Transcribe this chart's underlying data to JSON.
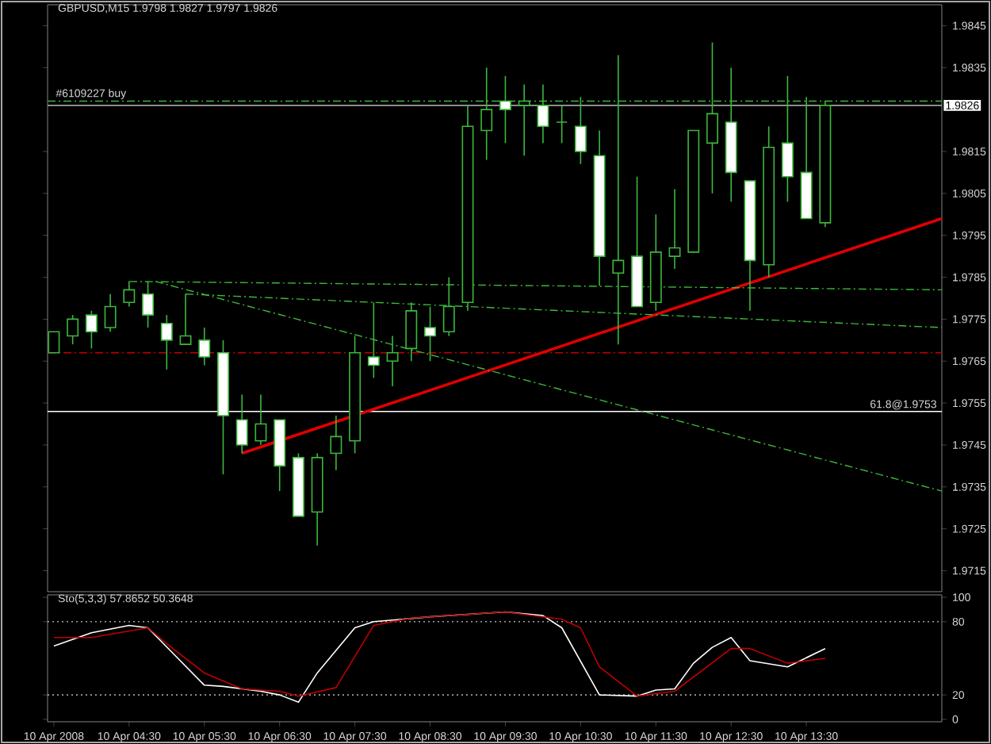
{
  "chart_data": [
    {
      "type": "candlestick",
      "title": "GBPUSD,M15 1.9798 1.9827 1.9797 1.9826",
      "color": "#3cb83c",
      "x": [
        "2008-04-10T03:30",
        "2008-04-10T03:45",
        "2008-04-10T04:00",
        "2008-04-10T04:15",
        "2008-04-10T04:30",
        "2008-04-10T04:45",
        "2008-04-10T05:00",
        "2008-04-10T05:15",
        "2008-04-10T05:30",
        "2008-04-10T05:45",
        "2008-04-10T06:00",
        "2008-04-10T06:15",
        "2008-04-10T06:30",
        "2008-04-10T06:45",
        "2008-04-10T07:00",
        "2008-04-10T07:15",
        "2008-04-10T07:30",
        "2008-04-10T07:45",
        "2008-04-10T08:00",
        "2008-04-10T08:15",
        "2008-04-10T08:30",
        "2008-04-10T08:45",
        "2008-04-10T09:00",
        "2008-04-10T09:15",
        "2008-04-10T09:30",
        "2008-04-10T09:45",
        "2008-04-10T10:00",
        "2008-04-10T10:15",
        "2008-04-10T10:30",
        "2008-04-10T10:45",
        "2008-04-10T11:00",
        "2008-04-10T11:15",
        "2008-04-10T11:30",
        "2008-04-10T11:45",
        "2008-04-10T12:00",
        "2008-04-10T12:15",
        "2008-04-10T12:30",
        "2008-04-10T12:45",
        "2008-04-10T13:00",
        "2008-04-10T13:15",
        "2008-04-10T13:30",
        "2008-04-10T13:45"
      ],
      "ohlc": [
        [
          1.9767,
          1.9772,
          1.9767,
          1.9772
        ],
        [
          1.9771,
          1.9776,
          1.9769,
          1.9775
        ],
        [
          1.9776,
          1.9777,
          1.9768,
          1.9772
        ],
        [
          1.9773,
          1.9781,
          1.9772,
          1.9778
        ],
        [
          1.9779,
          1.9784,
          1.9778,
          1.9782
        ],
        [
          1.9781,
          1.9784,
          1.9773,
          1.9776
        ],
        [
          1.9774,
          1.9776,
          1.9763,
          1.977
        ],
        [
          1.9769,
          1.9781,
          1.9769,
          1.9771
        ],
        [
          1.977,
          1.9773,
          1.9764,
          1.9766
        ],
        [
          1.9767,
          1.977,
          1.9738,
          1.9752
        ],
        [
          1.9751,
          1.9757,
          1.9743,
          1.9745
        ],
        [
          1.9746,
          1.9757,
          1.9745,
          1.975
        ],
        [
          1.9751,
          1.9751,
          1.9734,
          1.974
        ],
        [
          1.9742,
          1.9743,
          1.9728,
          1.9728
        ],
        [
          1.9729,
          1.9743,
          1.9721,
          1.9742
        ],
        [
          1.9743,
          1.9752,
          1.9739,
          1.9747
        ],
        [
          1.9746,
          1.9771,
          1.9743,
          1.9767
        ],
        [
          1.9766,
          1.9779,
          1.9761,
          1.9764
        ],
        [
          1.9765,
          1.9771,
          1.9759,
          1.9767
        ],
        [
          1.9768,
          1.9779,
          1.9765,
          1.9777
        ],
        [
          1.9773,
          1.9778,
          1.9765,
          1.9771
        ],
        [
          1.9772,
          1.9785,
          1.9771,
          1.9778
        ],
        [
          1.9779,
          1.9826,
          1.9777,
          1.9821
        ],
        [
          1.982,
          1.9835,
          1.9813,
          1.9825
        ],
        [
          1.9827,
          1.9833,
          1.9817,
          1.9825
        ],
        [
          1.9826,
          1.9831,
          1.9814,
          1.9827
        ],
        [
          1.9826,
          1.9831,
          1.9817,
          1.9821
        ],
        [
          1.9822,
          1.9826,
          1.9817,
          1.9822
        ],
        [
          1.9821,
          1.9828,
          1.9812,
          1.9815
        ],
        [
          1.9814,
          1.982,
          1.9783,
          1.979
        ],
        [
          1.9786,
          1.9838,
          1.9769,
          1.9789
        ],
        [
          1.979,
          1.9809,
          1.9778,
          1.9778
        ],
        [
          1.9779,
          1.98,
          1.9777,
          1.9791
        ],
        [
          1.979,
          1.9806,
          1.9787,
          1.9792
        ],
        [
          1.9791,
          1.982,
          1.9791,
          1.982
        ],
        [
          1.9817,
          1.9841,
          1.9805,
          1.9824
        ],
        [
          1.9822,
          1.9835,
          1.9803,
          1.981
        ],
        [
          1.9808,
          1.9808,
          1.9777,
          1.9789
        ],
        [
          1.9788,
          1.9821,
          1.9785,
          1.9816
        ],
        [
          1.9817,
          1.9833,
          1.9803,
          1.9809
        ],
        [
          1.981,
          1.9828,
          1.9799,
          1.9799
        ],
        [
          1.9798,
          1.9827,
          1.9797,
          1.9826
        ]
      ],
      "series": [
        {
          "type": "line",
          "x": [
            "2008-04-10T06:00",
            "2008-04-10T15:18"
          ],
          "values": [
            1.9743,
            1.9799
          ],
          "color": "#e00000",
          "line_style": "solid"
        },
        {
          "type": "line",
          "x": [
            "2008-04-10T04:30",
            "2008-04-10T15:18"
          ],
          "values": [
            1.9784,
            1.9782
          ],
          "color": "#3cb83c",
          "line_style": "dashed"
        },
        {
          "type": "line",
          "x": [
            "2008-04-10T05:15",
            "2008-04-10T15:18"
          ],
          "values": [
            1.9781,
            1.9773
          ],
          "color": "#3cb83c",
          "line_style": "dashed"
        },
        {
          "type": "line",
          "x": [
            "2008-04-10T04:51",
            "2008-04-10T15:18"
          ],
          "values": [
            1.9784,
            1.9734
          ],
          "color": "#3cb83c",
          "line_style": "dashed"
        }
      ],
      "ref_lines": [
        {
          "axis": "y",
          "value": 1.9827,
          "label": "#6109227 buy",
          "color": "#3cb83c",
          "line_style": "dashed"
        },
        {
          "axis": "y",
          "value": 1.9826,
          "label": "1.9826",
          "color": "#a0a0a0",
          "line_style": "solid"
        },
        {
          "axis": "y",
          "value": 1.9767,
          "color": "#c00000",
          "line_style": "dashed"
        },
        {
          "axis": "y",
          "value": 1.9753,
          "label": "61.8@1.9753",
          "color": "#ffffff",
          "line_style": "solid"
        }
      ],
      "xlim": [
        "2008-04-10T03:25",
        "2008-04-10T15:18"
      ],
      "ylim": [
        1.971,
        1.985
      ],
      "yticks": [
        1.9845,
        1.9835,
        1.9815,
        1.9805,
        1.9795,
        1.9785,
        1.9775,
        1.9765,
        1.9755,
        1.9745,
        1.9735,
        1.9725,
        1.9715
      ],
      "tick_labels": "y"
    },
    {
      "type": "line",
      "title": "Sto(5,3,3) 57.8652 50.3648",
      "series": [
        {
          "x": [
            "2008-04-10T03:30",
            "2008-04-10T04:00",
            "2008-04-10T04:30",
            "2008-04-10T04:45",
            "2008-04-10T05:30",
            "2008-04-10T05:45",
            "2008-04-10T06:15",
            "2008-04-10T06:30",
            "2008-04-10T06:45",
            "2008-04-10T07:00",
            "2008-04-10T07:30",
            "2008-04-10T07:45",
            "2008-04-10T08:30",
            "2008-04-10T09:30",
            "2008-04-10T10:00",
            "2008-04-10T10:15",
            "2008-04-10T10:45",
            "2008-04-10T11:15",
            "2008-04-10T11:30",
            "2008-04-10T11:45",
            "2008-04-10T12:00",
            "2008-04-10T12:15",
            "2008-04-10T12:30",
            "2008-04-10T12:45",
            "2008-04-10T13:15",
            "2008-04-10T13:45"
          ],
          "values": [
            60,
            71,
            77,
            75,
            28,
            27,
            23,
            20,
            14,
            38,
            75,
            80,
            84,
            88,
            85,
            75,
            20,
            19,
            24,
            25,
            46,
            59,
            67,
            48,
            43,
            58
          ],
          "color": "#ffffff",
          "line_style": "solid"
        },
        {
          "x": [
            "2008-04-10T03:30",
            "2008-04-10T04:00",
            "2008-04-10T04:45",
            "2008-04-10T05:00",
            "2008-04-10T05:30",
            "2008-04-10T06:00",
            "2008-04-10T06:30",
            "2008-04-10T06:45",
            "2008-04-10T07:15",
            "2008-04-10T07:45",
            "2008-04-10T08:15",
            "2008-04-10T09:30",
            "2008-04-10T10:15",
            "2008-04-10T10:30",
            "2008-04-10T10:45",
            "2008-04-10T11:15",
            "2008-04-10T11:45",
            "2008-04-10T12:30",
            "2008-04-10T12:45",
            "2008-04-10T13:15",
            "2008-04-10T13:45"
          ],
          "values": [
            67,
            67,
            75,
            62,
            38,
            25,
            23,
            19,
            26,
            77,
            83,
            88,
            82,
            75,
            43,
            19,
            23,
            58,
            58,
            46,
            50
          ],
          "color": "#c00000",
          "line_style": "solid"
        }
      ],
      "ref_lines": [
        {
          "axis": "y",
          "value": 80,
          "color": "#a0a0a0",
          "line_style": "dotted"
        },
        {
          "axis": "y",
          "value": 20,
          "color": "#a0a0a0",
          "line_style": "dotted"
        }
      ],
      "xlim": [
        "2008-04-10T03:25",
        "2008-04-10T15:18"
      ],
      "ylim": [
        -2,
        102
      ],
      "xticks": [
        {
          "value": "2008-04-10T03:30",
          "label": "10 Apr 2008"
        },
        {
          "value": "2008-04-10T04:30",
          "label": "10 Apr 04:30"
        },
        {
          "value": "2008-04-10T05:30",
          "label": "10 Apr 05:30"
        },
        {
          "value": "2008-04-10T06:30",
          "label": "10 Apr 06:30"
        },
        {
          "value": "2008-04-10T07:30",
          "label": "10 Apr 07:30"
        },
        {
          "value": "2008-04-10T08:30",
          "label": "10 Apr 08:30"
        },
        {
          "value": "2008-04-10T09:30",
          "label": "10 Apr 09:30"
        },
        {
          "value": "2008-04-10T10:30",
          "label": "10 Apr 10:30"
        },
        {
          "value": "2008-04-10T11:30",
          "label": "10 Apr 11:30"
        },
        {
          "value": "2008-04-10T12:30",
          "label": "10 Apr 12:30"
        },
        {
          "value": "2008-04-10T13:30",
          "label": "10 Apr 13:30"
        }
      ],
      "yticks": [
        100,
        80,
        20,
        0
      ]
    }
  ]
}
